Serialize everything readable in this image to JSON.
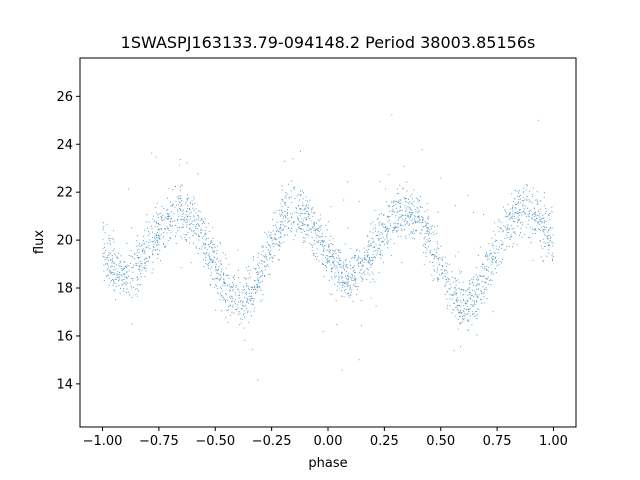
{
  "chart_data": {
    "type": "scatter",
    "title": "1SWASPJ163133.79-094148.2 Period 38003.85156s",
    "xlabel": "phase",
    "ylabel": "flux",
    "xlim": [
      -1.1,
      1.1
    ],
    "ylim": [
      12.2,
      27.6
    ],
    "grid": false,
    "legend": "none",
    "marker_color": "#1f77b4",
    "x_ticks": [
      {
        "value": -1.0,
        "label": "−1.00"
      },
      {
        "value": -0.75,
        "label": "−0.75"
      },
      {
        "value": -0.5,
        "label": "−0.50"
      },
      {
        "value": -0.25,
        "label": "−0.25"
      },
      {
        "value": 0.0,
        "label": "0.00"
      },
      {
        "value": 0.25,
        "label": "0.25"
      },
      {
        "value": 0.5,
        "label": "0.50"
      },
      {
        "value": 0.75,
        "label": "0.75"
      },
      {
        "value": 1.0,
        "label": "1.00"
      }
    ],
    "y_ticks": [
      {
        "value": 14,
        "label": "14"
      },
      {
        "value": 16,
        "label": "16"
      },
      {
        "value": 18,
        "label": "18"
      },
      {
        "value": 20,
        "label": "20"
      },
      {
        "value": 22,
        "label": "22"
      },
      {
        "value": 24,
        "label": "24"
      },
      {
        "value": 26,
        "label": "26"
      }
    ],
    "series": [
      {
        "curve": {
          "phase": [
            -1.0,
            -0.95,
            -0.9,
            -0.85,
            -0.8,
            -0.75,
            -0.7,
            -0.65,
            -0.6,
            -0.55,
            -0.5,
            -0.45,
            -0.4,
            -0.35,
            -0.3,
            -0.25,
            -0.2,
            -0.15,
            -0.1,
            -0.05,
            0.0,
            0.05,
            0.1,
            0.15,
            0.2,
            0.25,
            0.3,
            0.35,
            0.4,
            0.45,
            0.5,
            0.55,
            0.6,
            0.65,
            0.7,
            0.75,
            0.8,
            0.85,
            0.9,
            0.95,
            1.0
          ],
          "flux": [
            19.7,
            18.9,
            18.5,
            18.8,
            19.6,
            20.4,
            21.0,
            21.2,
            20.9,
            20.0,
            18.9,
            17.9,
            17.4,
            17.7,
            18.7,
            20.0,
            20.9,
            21.3,
            21.0,
            20.2,
            19.3,
            18.7,
            18.5,
            18.9,
            19.7,
            20.5,
            21.0,
            21.2,
            20.9,
            20.0,
            18.9,
            17.9,
            17.3,
            17.6,
            18.6,
            19.8,
            20.8,
            21.2,
            21.1,
            20.6,
            19.9
          ]
        },
        "scatter_width": 0.55,
        "point_count": 14000,
        "outlier_range": [
          12.9,
          27.1
        ]
      }
    ]
  }
}
